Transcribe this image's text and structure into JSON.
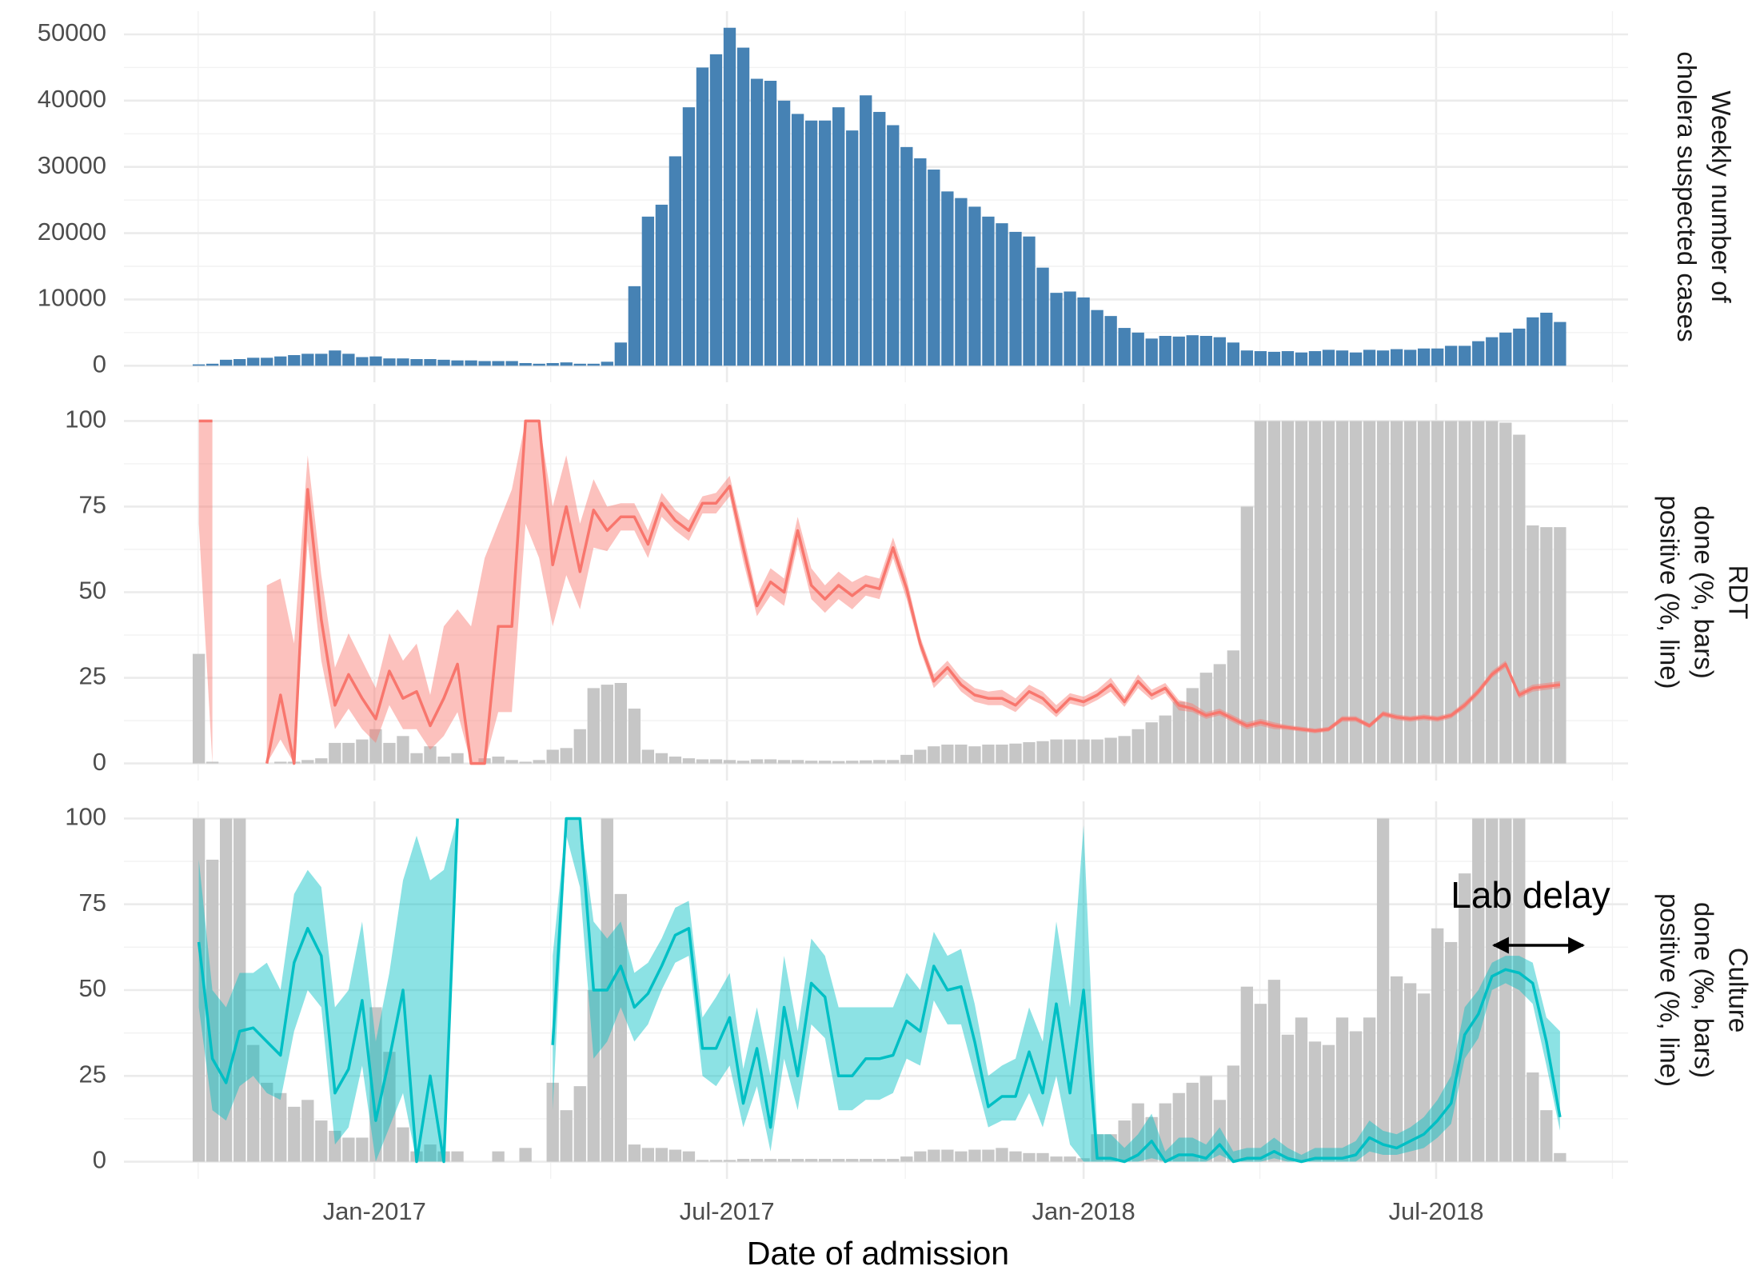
{
  "chart_data": [
    {
      "type": "bar",
      "ylabel": [
        "Weekly number of",
        "cholera suspected cases"
      ],
      "x": [
        0,
        1,
        2,
        3,
        4,
        5,
        6,
        7,
        8,
        9,
        10,
        11,
        12,
        13,
        14,
        15,
        16,
        17,
        18,
        19,
        20,
        21,
        22,
        23,
        24,
        25,
        26,
        27,
        28,
        29,
        30,
        31,
        32,
        33,
        34,
        35,
        36,
        37,
        38,
        39,
        40,
        41,
        42,
        43,
        44,
        45,
        46,
        47,
        48,
        49,
        50,
        51,
        52,
        53,
        54,
        55,
        56,
        57,
        58,
        59,
        60,
        61,
        62,
        63,
        64,
        65,
        66,
        67,
        68,
        69,
        70,
        71,
        72,
        73,
        74,
        75,
        76,
        77,
        78,
        79,
        80,
        81,
        82,
        83,
        84,
        85,
        86,
        87,
        88,
        89,
        90,
        91,
        92,
        93,
        94,
        95,
        96,
        97,
        98,
        99,
        100
      ],
      "values": [
        200,
        300,
        900,
        1000,
        1200,
        1200,
        1400,
        1600,
        1800,
        1800,
        2300,
        1800,
        1300,
        1400,
        1100,
        1100,
        1000,
        1000,
        900,
        800,
        800,
        700,
        700,
        700,
        400,
        300,
        400,
        500,
        300,
        300,
        600,
        3500,
        12000,
        22500,
        24300,
        31600,
        39000,
        45000,
        47000,
        51000,
        48000,
        43300,
        43000,
        40000,
        38000,
        37000,
        37000,
        39000,
        35500,
        40800,
        38300,
        36300,
        33000,
        31300,
        29600,
        26300,
        25300,
        24000,
        22500,
        21500,
        20200,
        19500,
        14800,
        11000,
        11200,
        10300,
        8400,
        7500,
        5700,
        5000,
        4100,
        4500,
        4400,
        4600,
        4500,
        4300,
        3500,
        2300,
        2200,
        2100,
        2200,
        2000,
        2200,
        2400,
        2300,
        2000,
        2400,
        2300,
        2500,
        2400,
        2600,
        2600,
        3000,
        3000,
        3700,
        4300,
        5000,
        5600,
        7300,
        8000,
        6600
      ],
      "color": "#4682b4",
      "ylim": [
        -2500,
        53500
      ],
      "yticks": [
        0,
        10000,
        20000,
        30000,
        40000,
        50000
      ],
      "grid": true
    },
    {
      "type": "combo",
      "ylabel": [
        "RDT",
        "done (%, bars)",
        "positive (%, line)"
      ],
      "x": [
        0,
        1,
        2,
        3,
        4,
        5,
        6,
        7,
        8,
        9,
        10,
        11,
        12,
        13,
        14,
        15,
        16,
        17,
        18,
        19,
        20,
        21,
        22,
        23,
        24,
        25,
        26,
        27,
        28,
        29,
        30,
        31,
        32,
        33,
        34,
        35,
        36,
        37,
        38,
        39,
        40,
        41,
        42,
        43,
        44,
        45,
        46,
        47,
        48,
        49,
        50,
        51,
        52,
        53,
        54,
        55,
        56,
        57,
        58,
        59,
        60,
        61,
        62,
        63,
        64,
        65,
        66,
        67,
        68,
        69,
        70,
        71,
        72,
        73,
        74,
        75,
        76,
        77,
        78,
        79,
        80,
        81,
        82,
        83,
        84,
        85,
        86,
        87,
        88,
        89,
        90,
        91,
        92,
        93,
        94,
        95,
        96,
        97,
        98,
        99,
        100
      ],
      "bars": {
        "color": "#c6c6c6",
        "values": [
          32,
          0.5,
          0,
          0,
          0,
          0,
          0.5,
          0.5,
          1,
          1.5,
          6,
          6,
          7,
          10,
          6,
          8,
          3,
          5,
          2,
          3,
          0,
          1.5,
          2,
          1,
          0.5,
          1,
          4,
          4.5,
          10,
          22,
          23,
          23.5,
          16,
          4,
          3,
          2,
          1.5,
          1.2,
          1.2,
          1,
          0.8,
          1.2,
          1.2,
          1,
          1,
          0.8,
          0.8,
          0.7,
          0.8,
          0.9,
          1,
          1,
          2.5,
          4,
          5,
          5.5,
          5.5,
          5,
          5.5,
          5.5,
          5.8,
          6.2,
          6.5,
          7,
          7,
          7,
          7,
          7.5,
          8,
          10,
          12,
          14,
          18,
          22,
          26.5,
          29,
          33,
          75,
          100,
          100,
          100,
          100,
          100,
          100,
          100,
          100,
          100,
          100,
          100,
          100,
          100,
          100,
          100,
          100,
          100,
          100,
          99.5,
          96,
          69.5,
          69,
          69
        ]
      },
      "line": {
        "color": "#f8766d",
        "values": [
          100,
          100,
          null,
          null,
          null,
          0,
          20,
          0,
          80,
          42,
          17,
          26,
          19,
          13,
          27,
          19,
          21,
          11,
          19,
          29,
          0,
          0,
          40,
          40,
          100,
          100,
          58,
          75,
          56,
          74,
          68,
          72,
          72,
          64,
          76,
          71,
          68,
          76,
          76,
          81,
          63,
          46,
          53,
          50,
          68,
          52,
          48,
          52,
          49,
          52,
          51,
          63,
          51,
          35,
          24,
          28,
          23,
          20,
          19,
          19,
          17,
          21,
          19,
          15,
          19,
          18,
          20,
          23,
          18,
          24,
          20,
          22,
          17,
          16,
          14,
          15,
          13,
          11,
          12,
          11,
          10.5,
          10,
          9.5,
          10,
          13,
          13,
          11,
          14.5,
          13.5,
          13,
          13.5,
          13,
          14,
          17,
          21,
          26,
          29,
          20,
          22,
          22.5,
          23
        ],
        "lower": [
          70,
          0,
          null,
          null,
          null,
          0,
          7,
          0,
          65,
          30,
          10,
          16,
          10,
          6,
          17,
          10,
          10,
          4,
          8,
          15,
          0,
          0,
          15,
          15,
          70,
          60,
          40,
          55,
          45,
          63,
          62,
          68,
          68,
          60,
          72,
          68,
          65,
          73,
          73,
          78,
          59,
          43,
          49,
          46,
          64,
          48,
          44,
          48,
          45,
          49,
          48,
          60,
          48,
          33,
          22,
          26,
          21,
          18,
          17,
          17,
          15,
          19,
          17,
          13.5,
          17.5,
          16.5,
          18.5,
          21,
          16.5,
          22,
          18.5,
          20.5,
          15.5,
          15,
          13,
          14,
          12,
          10,
          11,
          10,
          9.8,
          9.3,
          8.8,
          9.3,
          12.2,
          12.2,
          10.3,
          13.7,
          12.7,
          12.2,
          12.7,
          12.2,
          13.2,
          16,
          20,
          25,
          28,
          19,
          21,
          21.5,
          22
        ],
        "upper": [
          100,
          100,
          null,
          null,
          null,
          52,
          54,
          35,
          90,
          55,
          28,
          38,
          30,
          22,
          38,
          30,
          35,
          20,
          40,
          45,
          40,
          60,
          70,
          80,
          100,
          100,
          75,
          90,
          70,
          83,
          75,
          76,
          76,
          68,
          79,
          74,
          71,
          78,
          79,
          84,
          67,
          49,
          57,
          54,
          72,
          57,
          52,
          56,
          53,
          55,
          54,
          66,
          54,
          37,
          26,
          30,
          25,
          22,
          21,
          21.5,
          19,
          23,
          21,
          17,
          20.5,
          19.5,
          21.5,
          25,
          19.5,
          26,
          21.5,
          23.5,
          18.5,
          17.5,
          15,
          16,
          14,
          12,
          13,
          12,
          11.2,
          10.7,
          10.2,
          10.7,
          13.8,
          13.8,
          11.7,
          15.3,
          14.3,
          13.8,
          14.3,
          13.8,
          14.8,
          18,
          22,
          27,
          30,
          21,
          23,
          23.5,
          24
        ]
      },
      "ylim": [
        -5,
        105
      ],
      "yticks": [
        0,
        25,
        50,
        75,
        100
      ],
      "grid": true
    },
    {
      "type": "combo",
      "ylabel": [
        "Culture",
        "done (‰, bars)",
        "positive (%, line)"
      ],
      "xlabel": "Date of admission",
      "annotation": "Lab delay",
      "xlim": [
        -5.5,
        105
      ],
      "xticks": [
        {
          "value": 12.9,
          "label": "Jan-2017"
        },
        {
          "value": 38.8,
          "label": "Jul-2017"
        },
        {
          "value": 65.0,
          "label": "Jan-2018"
        },
        {
          "value": 90.9,
          "label": "Jul-2018"
        }
      ],
      "x": [
        0,
        1,
        2,
        3,
        4,
        5,
        6,
        7,
        8,
        9,
        10,
        11,
        12,
        13,
        14,
        15,
        16,
        17,
        18,
        19,
        20,
        21,
        22,
        23,
        24,
        25,
        26,
        27,
        28,
        29,
        30,
        31,
        32,
        33,
        34,
        35,
        36,
        37,
        38,
        39,
        40,
        41,
        42,
        43,
        44,
        45,
        46,
        47,
        48,
        49,
        50,
        51,
        52,
        53,
        54,
        55,
        56,
        57,
        58,
        59,
        60,
        61,
        62,
        63,
        64,
        65,
        66,
        67,
        68,
        69,
        70,
        71,
        72,
        73,
        74,
        75,
        76,
        77,
        78,
        79,
        80,
        81,
        82,
        83,
        84,
        85,
        86,
        87,
        88,
        89,
        90,
        91,
        92,
        93,
        94,
        95,
        96,
        97,
        98,
        99,
        100
      ],
      "bars": {
        "color": "#c6c6c6",
        "values": [
          100,
          88,
          100,
          100,
          34,
          23,
          20,
          16,
          18,
          12,
          9,
          7,
          7,
          45,
          32,
          10,
          3,
          5,
          3,
          3,
          0,
          0,
          3,
          0,
          4,
          0,
          23,
          15,
          22,
          50,
          100,
          78,
          5,
          4,
          4,
          3.5,
          3,
          0.5,
          0.5,
          0.5,
          0.8,
          0.8,
          0.8,
          0.8,
          0.8,
          0.8,
          0.8,
          0.8,
          0.8,
          0.8,
          0.8,
          0.8,
          1.5,
          3,
          3.5,
          3.5,
          3,
          3.5,
          3.5,
          4,
          3,
          2.5,
          2.5,
          1.5,
          1.5,
          1,
          8,
          8,
          12,
          17,
          13,
          17,
          20,
          23,
          25,
          18,
          28,
          51,
          46,
          53,
          37,
          42,
          35,
          34,
          42,
          38,
          42,
          100,
          54,
          52,
          49,
          68,
          64,
          84,
          100,
          100,
          100,
          100,
          26,
          15,
          2.5
        ]
      },
      "line": {
        "color": "#00bfc4",
        "values": [
          64,
          30,
          23,
          38,
          39,
          35,
          31,
          58,
          68,
          60,
          20,
          27,
          47,
          12,
          30,
          50,
          0,
          25,
          0,
          100,
          null,
          null,
          null,
          null,
          null,
          null,
          34,
          100,
          100,
          50,
          50,
          57,
          45,
          49,
          57,
          66,
          68,
          33,
          33,
          42,
          17,
          33,
          10,
          45,
          25,
          52,
          48,
          25,
          25,
          30,
          30,
          31,
          41,
          38,
          57,
          50,
          51,
          35,
          16,
          19,
          19,
          32,
          20,
          46,
          20,
          50,
          1,
          1,
          0,
          2,
          6,
          0,
          2,
          2,
          1,
          5,
          0,
          1,
          1,
          3,
          1,
          0,
          1,
          1,
          1,
          2,
          7,
          5,
          4,
          6,
          8,
          12,
          17,
          37,
          43,
          54,
          56,
          55,
          52,
          35,
          13
        ],
        "lower": [
          45,
          15,
          12,
          22,
          25,
          20,
          18,
          38,
          50,
          45,
          5,
          10,
          28,
          0,
          10,
          20,
          0,
          0,
          0,
          90,
          null,
          null,
          null,
          null,
          null,
          null,
          15,
          95,
          80,
          30,
          35,
          45,
          35,
          40,
          50,
          58,
          60,
          25,
          22,
          28,
          10,
          22,
          3,
          30,
          15,
          40,
          36,
          15,
          15,
          18,
          18,
          20,
          30,
          28,
          47,
          40,
          40,
          25,
          10,
          12,
          12,
          20,
          10,
          25,
          5,
          0,
          0,
          0,
          0,
          0,
          1,
          0,
          0,
          0,
          0,
          2,
          0,
          0,
          0,
          1,
          0,
          0,
          0,
          0,
          0,
          0,
          3,
          2,
          2,
          3,
          4,
          7,
          11,
          30,
          36,
          50,
          52,
          50,
          46,
          28,
          9
        ],
        "upper": [
          88,
          50,
          45,
          55,
          55,
          58,
          50,
          78,
          85,
          80,
          45,
          50,
          70,
          35,
          55,
          82,
          95,
          82,
          85,
          100,
          null,
          null,
          null,
          null,
          null,
          null,
          60,
          100,
          100,
          70,
          65,
          70,
          55,
          58,
          65,
          74,
          76,
          42,
          48,
          55,
          27,
          45,
          25,
          60,
          38,
          65,
          60,
          45,
          45,
          45,
          45,
          45,
          55,
          50,
          67,
          60,
          62,
          46,
          25,
          28,
          30,
          45,
          35,
          70,
          45,
          98,
          8,
          8,
          4,
          8,
          14,
          3,
          7,
          7,
          5,
          10,
          3,
          4,
          4,
          7,
          4,
          2,
          4,
          4,
          4,
          6,
          12,
          9,
          8,
          10,
          13,
          18,
          25,
          45,
          50,
          58,
          60,
          60,
          58,
          42,
          38
        ]
      },
      "ylim": [
        -5,
        105
      ],
      "yticks": [
        0,
        25,
        50,
        75,
        100
      ],
      "grid": true
    }
  ]
}
